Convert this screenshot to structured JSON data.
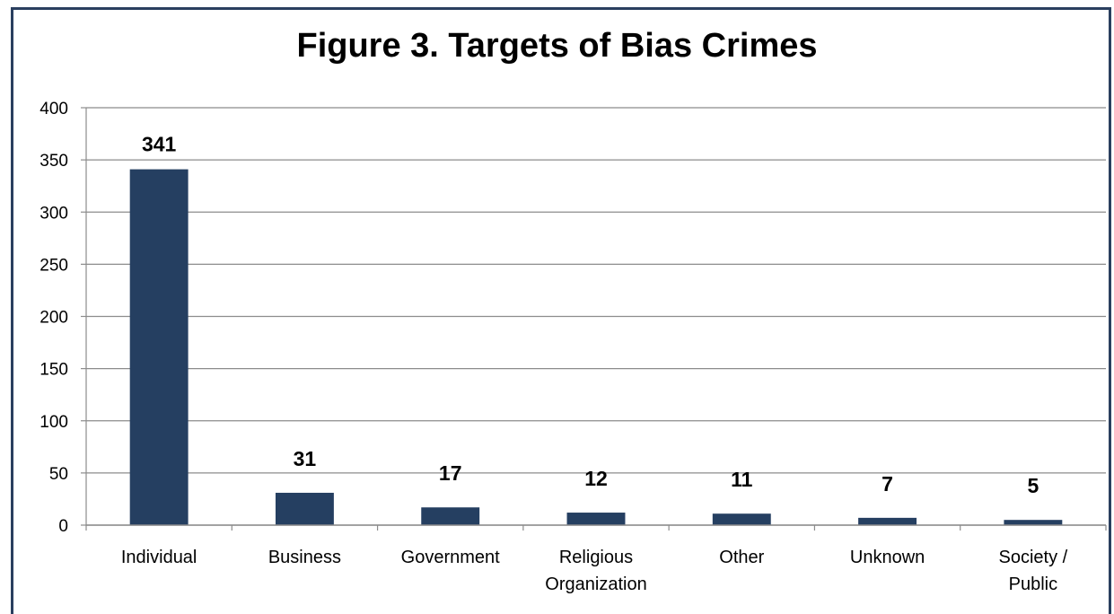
{
  "chart_data": {
    "type": "bar",
    "title": "Figure 3. Targets of Bias Crimes",
    "xlabel": "",
    "ylabel": "",
    "categories": [
      "Individual",
      "Business",
      "Government",
      "Religious Organization",
      "Other",
      "Unknown",
      "Society / Public"
    ],
    "category_lines": [
      [
        "Individual"
      ],
      [
        "Business"
      ],
      [
        "Government"
      ],
      [
        "Religious",
        "Organization"
      ],
      [
        "Other"
      ],
      [
        "Unknown"
      ],
      [
        "Society /",
        "Public"
      ]
    ],
    "values": [
      341,
      31,
      17,
      12,
      11,
      7,
      5
    ],
    "ylim": [
      0,
      400
    ],
    "yticks": [
      0,
      50,
      100,
      150,
      200,
      250,
      300,
      350,
      400
    ],
    "grid": true,
    "legend": "none",
    "bar_color": "#253f61"
  }
}
